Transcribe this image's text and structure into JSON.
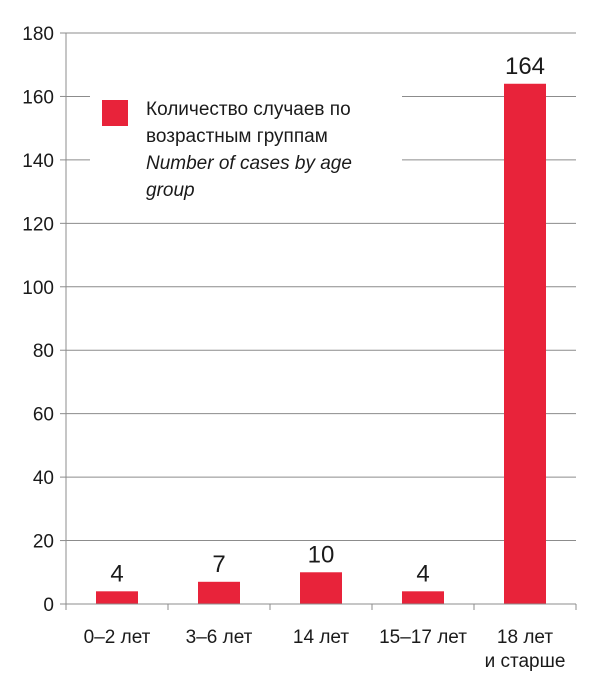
{
  "chart_data": {
    "type": "bar",
    "categories": [
      [
        "0–2 лет"
      ],
      [
        "3–6 лет"
      ],
      [
        "14 лет"
      ],
      [
        "15–17 лет"
      ],
      [
        "18 лет",
        "и старше"
      ]
    ],
    "values": [
      4,
      7,
      10,
      4,
      164
    ],
    "data_labels": [
      "4",
      "7",
      "10",
      "4",
      "164"
    ],
    "series": [
      {
        "name": "Количество случаев по возрастным группам Number of cases by age group",
        "values": [
          4,
          7,
          10,
          4,
          164
        ]
      }
    ],
    "legend": {
      "line1": "Количество случаев по",
      "line2": "возрастным группам",
      "line3": "Number of cases by age",
      "line4": "group",
      "placement": "top-left"
    },
    "yticks": [
      "0",
      "20",
      "40",
      "60",
      "80",
      "100",
      "120",
      "140",
      "160",
      "180"
    ],
    "ylim": [
      0,
      180
    ],
    "grid": true,
    "bar_color": "#e8233a",
    "title": "",
    "xlabel": "",
    "ylabel": ""
  }
}
